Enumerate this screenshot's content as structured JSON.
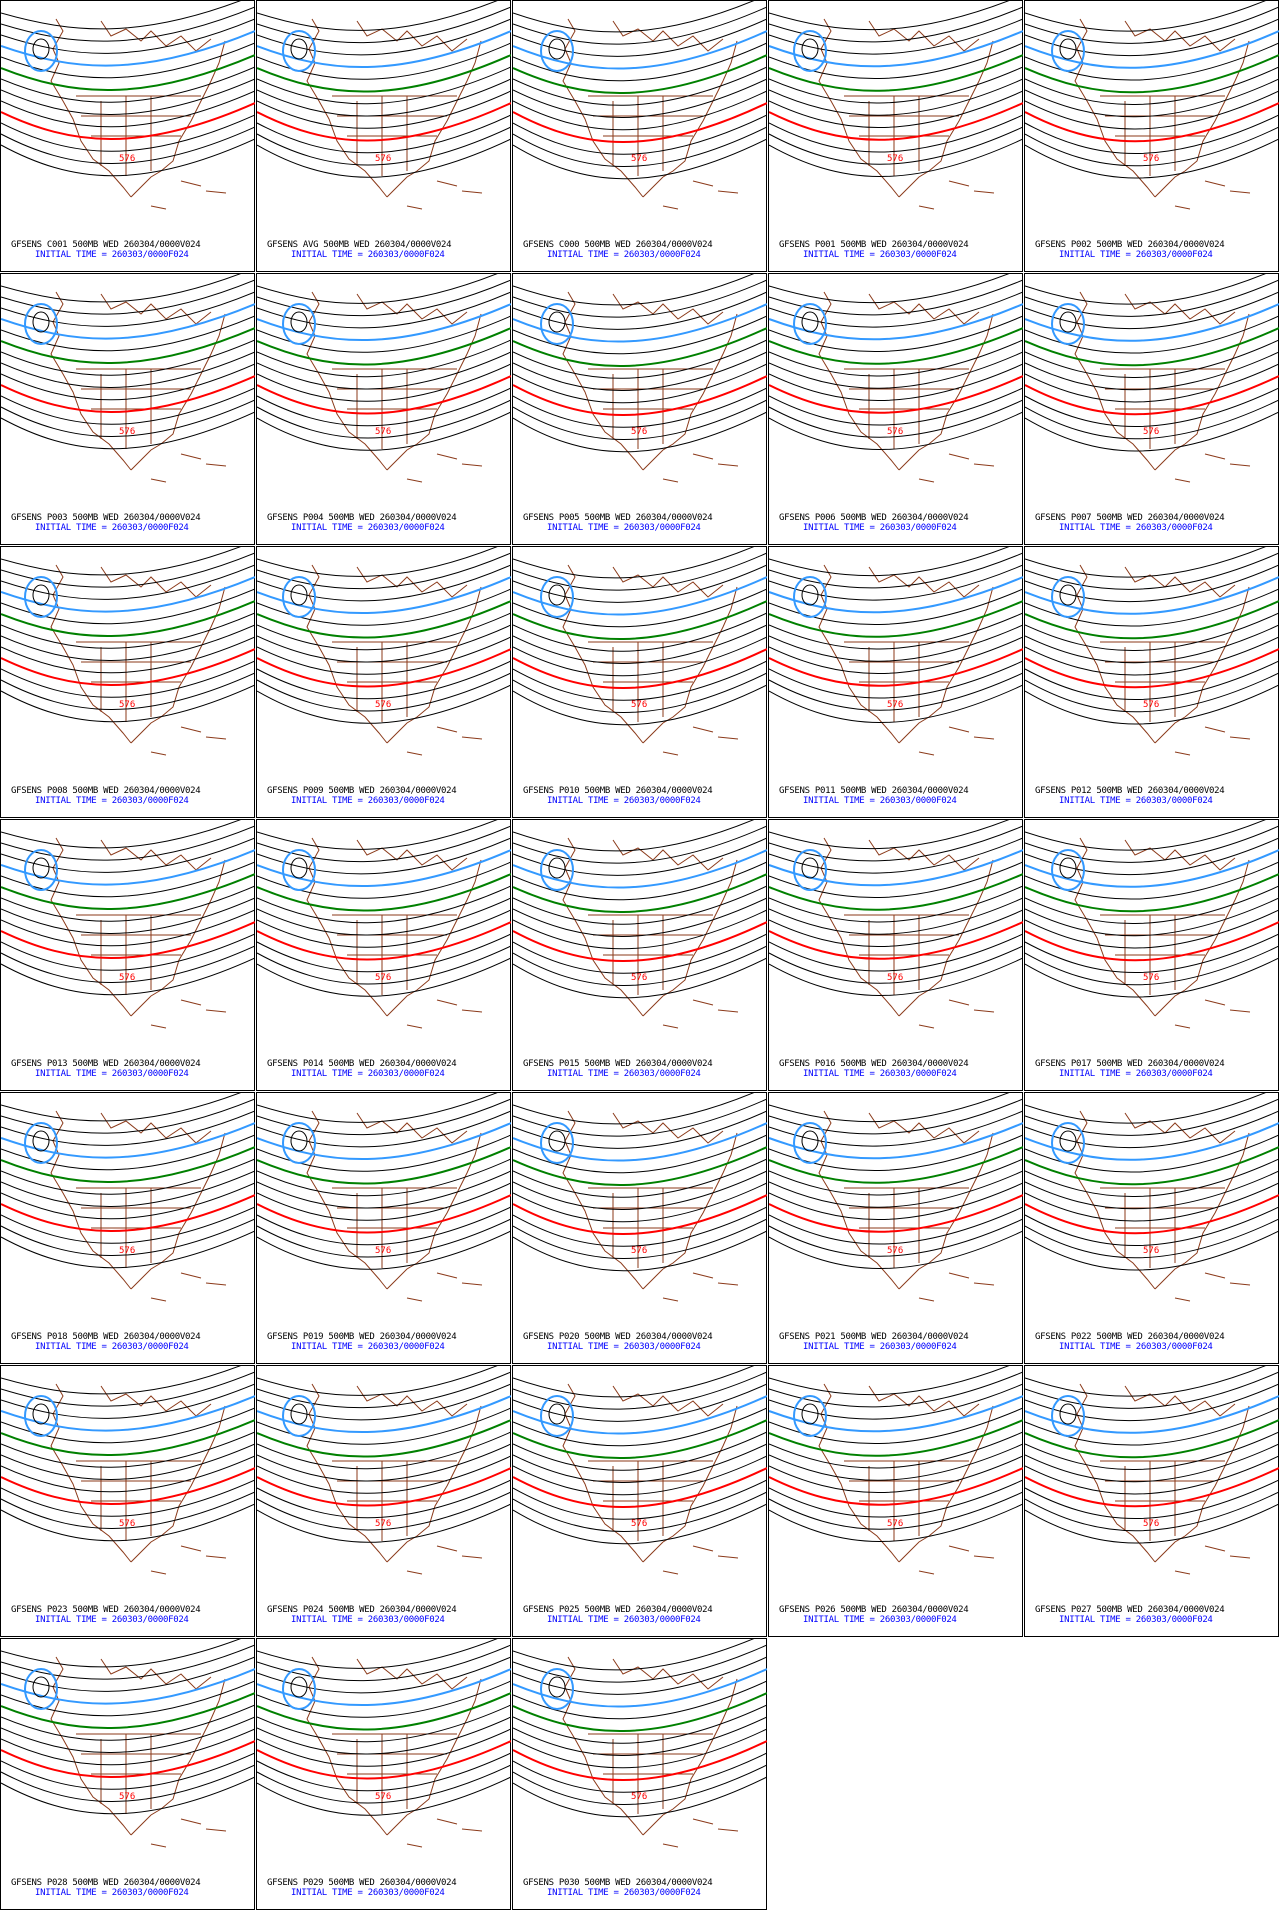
{
  "panels": [
    {
      "title": "GFSENS C001 500MB WED 260304/0000V024",
      "init_time": "INITIAL TIME = 260303/0000F024",
      "contour_label": "576"
    },
    {
      "title": "GFSENS AVG 500MB WED 260304/0000V024",
      "init_time": "INITIAL TIME = 260303/0000F024",
      "contour_label": "576"
    },
    {
      "title": "GFSENS C000 500MB WED 260304/0000V024",
      "init_time": "INITIAL TIME = 260303/0000F024",
      "contour_label": "576"
    },
    {
      "title": "GFSENS P001 500MB WED 260304/0000V024",
      "init_time": "INITIAL TIME = 260303/0000F024",
      "contour_label": "576"
    },
    {
      "title": "GFSENS P002 500MB WED 260304/0000V024",
      "init_time": "INITIAL TIME = 260303/0000F024",
      "contour_label": "576"
    },
    {
      "title": "GFSENS P003 500MB WED 260304/0000V024",
      "init_time": "INITIAL TIME = 260303/0000F024",
      "contour_label": "576"
    },
    {
      "title": "GFSENS P004 500MB WED 260304/0000V024",
      "init_time": "INITIAL TIME = 260303/0000F024",
      "contour_label": "576"
    },
    {
      "title": "GFSENS P005 500MB WED 260304/0000V024",
      "init_time": "INITIAL TIME = 260303/0000F024",
      "contour_label": "576"
    },
    {
      "title": "GFSENS P006 500MB WED 260304/0000V024",
      "init_time": "INITIAL TIME = 260303/0000F024",
      "contour_label": "576"
    },
    {
      "title": "GFSENS P007 500MB WED 260304/0000V024",
      "init_time": "INITIAL TIME = 260303/0000F024",
      "contour_label": "576"
    },
    {
      "title": "GFSENS P008 500MB WED 260304/0000V024",
      "init_time": "INITIAL TIME = 260303/0000F024",
      "contour_label": "576"
    },
    {
      "title": "GFSENS P009 500MB WED 260304/0000V024",
      "init_time": "INITIAL TIME = 260303/0000F024",
      "contour_label": "576"
    },
    {
      "title": "GFSENS P010 500MB WED 260304/0000V024",
      "init_time": "INITIAL TIME = 260303/0000F024",
      "contour_label": "576"
    },
    {
      "title": "GFSENS P011 500MB WED 260304/0000V024",
      "init_time": "INITIAL TIME = 260303/0000F024",
      "contour_label": "576"
    },
    {
      "title": "GFSENS P012 500MB WED 260304/0000V024",
      "init_time": "INITIAL TIME = 260303/0000F024",
      "contour_label": "576"
    },
    {
      "title": "GFSENS P013 500MB WED 260304/0000V024",
      "init_time": "INITIAL TIME = 260303/0000F024",
      "contour_label": "576"
    },
    {
      "title": "GFSENS P014 500MB WED 260304/0000V024",
      "init_time": "INITIAL TIME = 260303/0000F024",
      "contour_label": "576"
    },
    {
      "title": "GFSENS P015 500MB WED 260304/0000V024",
      "init_time": "INITIAL TIME = 260303/0000F024",
      "contour_label": "576"
    },
    {
      "title": "GFSENS P016 500MB WED 260304/0000V024",
      "init_time": "INITIAL TIME = 260303/0000F024",
      "contour_label": "576"
    },
    {
      "title": "GFSENS P017 500MB WED 260304/0000V024",
      "init_time": "INITIAL TIME = 260303/0000F024",
      "contour_label": "576"
    },
    {
      "title": "GFSENS P018 500MB WED 260304/0000V024",
      "init_time": "INITIAL TIME = 260303/0000F024",
      "contour_label": "576"
    },
    {
      "title": "GFSENS P019 500MB WED 260304/0000V024",
      "init_time": "INITIAL TIME = 260303/0000F024",
      "contour_label": "576"
    },
    {
      "title": "GFSENS P020 500MB WED 260304/0000V024",
      "init_time": "INITIAL TIME = 260303/0000F024",
      "contour_label": "576"
    },
    {
      "title": "GFSENS P021 500MB WED 260304/0000V024",
      "init_time": "INITIAL TIME = 260303/0000F024",
      "contour_label": "576"
    },
    {
      "title": "GFSENS P022 500MB WED 260304/0000V024",
      "init_time": "INITIAL TIME = 260303/0000F024",
      "contour_label": "576"
    },
    {
      "title": "GFSENS P023 500MB WED 260304/0000V024",
      "init_time": "INITIAL TIME = 260303/0000F024",
      "contour_label": "576"
    },
    {
      "title": "GFSENS P024 500MB WED 260304/0000V024",
      "init_time": "INITIAL TIME = 260303/0000F024",
      "contour_label": "576"
    },
    {
      "title": "GFSENS P025 500MB WED 260304/0000V024",
      "init_time": "INITIAL TIME = 260303/0000F024",
      "contour_label": "576"
    },
    {
      "title": "GFSENS P026 500MB WED 260304/0000V024",
      "init_time": "INITIAL TIME = 260303/0000F024",
      "contour_label": "576"
    },
    {
      "title": "GFSENS P027 500MB WED 260304/0000V024",
      "init_time": "INITIAL TIME = 260303/0000F024",
      "contour_label": "576"
    },
    {
      "title": "GFSENS P028 500MB WED 260304/0000V024",
      "init_time": "INITIAL TIME = 260303/0000F024",
      "contour_label": "576"
    },
    {
      "title": "GFSENS P029 500MB WED 260304/0000V024",
      "init_time": "INITIAL TIME = 260303/0000F024",
      "contour_label": "576"
    },
    {
      "title": "GFSENS P030 500MB WED 260304/0000V024",
      "init_time": "INITIAL TIME = 260303/0000F024",
      "contour_label": "576"
    }
  ]
}
